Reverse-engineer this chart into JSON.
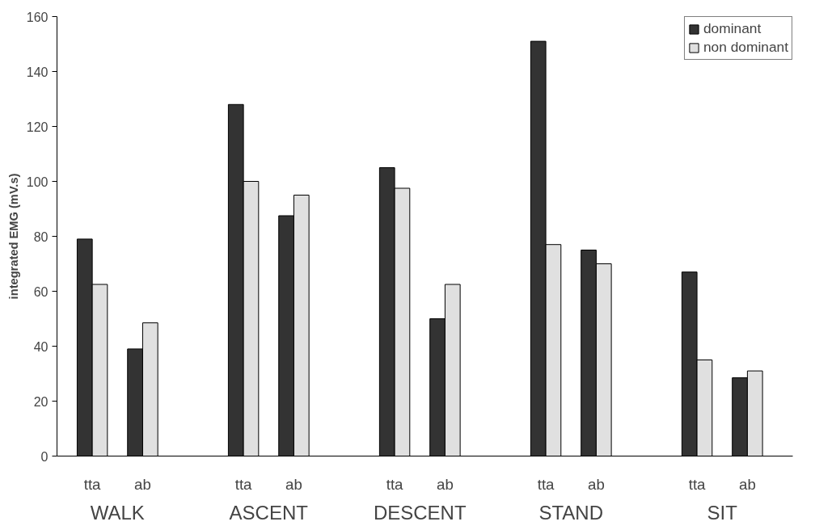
{
  "chart_data": {
    "type": "bar",
    "ylabel": "integrated EMG (mV.s)",
    "categories": [
      "tta",
      "ab",
      "tta",
      "ab",
      "tta",
      "ab",
      "tta",
      "ab",
      "tta",
      "ab"
    ],
    "series": [
      {
        "name": "dominant",
        "color": "#333333",
        "values": [
          79,
          39,
          128,
          87.5,
          105,
          50,
          151,
          75,
          67,
          28.5
        ]
      },
      {
        "name": "non dominant",
        "color": "#e0e0e0",
        "values": [
          62.5,
          48.5,
          100,
          95,
          97.5,
          62.5,
          77,
          70,
          35,
          31
        ]
      }
    ],
    "annotations": [
      "WALK",
      "ASCENT",
      "DESCENT",
      "STAND",
      "SIT"
    ],
    "ylim": [
      0,
      160
    ],
    "yticks": [
      0,
      20,
      40,
      60,
      80,
      100,
      120,
      140,
      160
    ],
    "grid": false,
    "legend": "top right"
  }
}
